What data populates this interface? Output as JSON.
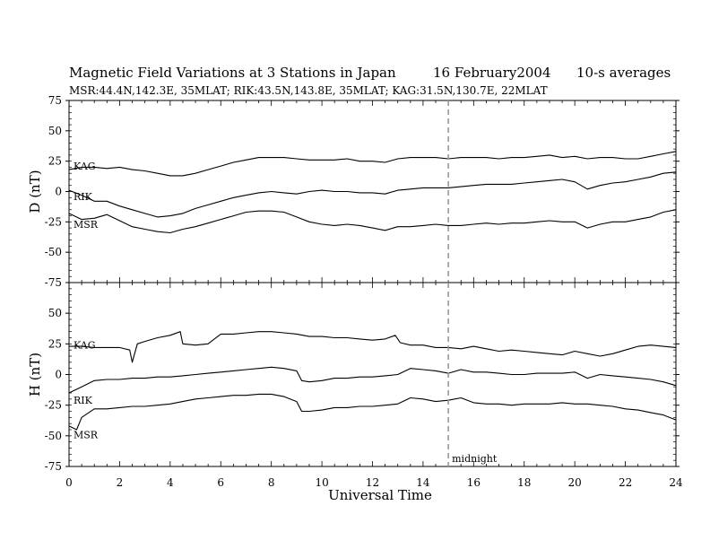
{
  "title": "Magnetic Field Variations at 3 Stations in Japan",
  "date": "16 February2004",
  "averaging": "10-s averages",
  "subtitle": "MSR:44.4N,142.3E, 35MLAT;   RIK:43.5N,143.8E, 35MLAT;   KAG:31.5N,130.7E, 22MLAT",
  "chart_data": [
    {
      "type": "line",
      "ylabel": "D (nT)",
      "ylim": [
        -75,
        75
      ],
      "yticks": [
        75,
        50,
        25,
        0,
        -25,
        -50,
        -75
      ],
      "xlim": [
        0,
        24
      ],
      "series": [
        {
          "name": "KAG",
          "x": [
            0,
            0.5,
            1,
            1.5,
            2,
            2.5,
            3,
            3.5,
            4,
            4.5,
            5,
            5.5,
            6,
            6.5,
            7,
            7.5,
            8,
            8.5,
            9,
            9.5,
            10,
            10.5,
            11,
            11.5,
            12,
            12.5,
            13,
            13.5,
            14,
            14.5,
            15,
            15.5,
            16,
            16.5,
            17,
            17.5,
            18,
            18.5,
            19,
            19.5,
            20,
            20.5,
            21,
            21.5,
            22,
            22.5,
            23,
            23.5,
            24
          ],
          "y": [
            18,
            20,
            20,
            19,
            20,
            18,
            17,
            15,
            13,
            13,
            15,
            18,
            21,
            24,
            26,
            28,
            28,
            28,
            27,
            26,
            26,
            26,
            27,
            25,
            25,
            24,
            27,
            28,
            28,
            28,
            27,
            28,
            28,
            28,
            27,
            28,
            28,
            29,
            30,
            28,
            29,
            27,
            28,
            28,
            27,
            27,
            29,
            31,
            33
          ]
        },
        {
          "name": "RIK",
          "x": [
            0,
            0.5,
            1,
            1.5,
            2,
            2.5,
            3,
            3.5,
            4,
            4.5,
            5,
            5.5,
            6,
            6.5,
            7,
            7.5,
            8,
            8.5,
            9,
            9.5,
            10,
            10.5,
            11,
            11.5,
            12,
            12.5,
            13,
            13.5,
            14,
            14.5,
            15,
            15.5,
            16,
            16.5,
            17,
            17.5,
            18,
            18.5,
            19,
            19.5,
            20,
            20.5,
            21,
            21.5,
            22,
            22.5,
            23,
            23.5,
            24
          ],
          "y": [
            1,
            -3,
            -8,
            -8,
            -12,
            -15,
            -18,
            -21,
            -20,
            -18,
            -14,
            -11,
            -8,
            -5,
            -3,
            -1,
            0,
            -1,
            -2,
            0,
            1,
            0,
            0,
            -1,
            -1,
            -2,
            1,
            2,
            3,
            3,
            3,
            4,
            5,
            6,
            6,
            6,
            7,
            8,
            9,
            10,
            8,
            2,
            5,
            7,
            8,
            10,
            12,
            15,
            16
          ]
        },
        {
          "name": "MSR",
          "x": [
            0,
            0.5,
            1,
            1.5,
            2,
            2.5,
            3,
            3.5,
            4,
            4.5,
            5,
            5.5,
            6,
            6.5,
            7,
            7.5,
            8,
            8.5,
            9,
            9.5,
            10,
            10.5,
            11,
            11.5,
            12,
            12.5,
            13,
            13.5,
            14,
            14.5,
            15,
            15.5,
            16,
            16.5,
            17,
            17.5,
            18,
            18.5,
            19,
            19.5,
            20,
            20.5,
            21,
            21.5,
            22,
            22.5,
            23,
            23.5,
            24
          ],
          "y": [
            -18,
            -23,
            -22,
            -19,
            -24,
            -29,
            -31,
            -33,
            -34,
            -31,
            -29,
            -26,
            -23,
            -20,
            -17,
            -16,
            -16,
            -17,
            -21,
            -25,
            -27,
            -28,
            -27,
            -28,
            -30,
            -32,
            -29,
            -29,
            -28,
            -27,
            -28,
            -28,
            -27,
            -26,
            -27,
            -26,
            -26,
            -25,
            -24,
            -25,
            -25,
            -30,
            -27,
            -25,
            -25,
            -23,
            -21,
            -17,
            -15
          ]
        }
      ]
    },
    {
      "type": "line",
      "xlabel": "Universal Time",
      "ylabel": "H (nT)",
      "ylim": [
        -75,
        75
      ],
      "yticks": [
        75,
        50,
        25,
        0,
        -25,
        -50,
        -75
      ],
      "xlim": [
        0,
        24
      ],
      "xticks": [
        0,
        2,
        4,
        6,
        8,
        10,
        12,
        14,
        16,
        18,
        20,
        22,
        24
      ],
      "series": [
        {
          "name": "KAG",
          "x": [
            0,
            0.5,
            1,
            1.5,
            2,
            2.4,
            2.5,
            2.7,
            3,
            3.5,
            4,
            4.4,
            4.5,
            5,
            5.5,
            6,
            6.5,
            7,
            7.5,
            8,
            8.5,
            9,
            9.5,
            10,
            10.5,
            11,
            11.5,
            12,
            12.5,
            12.9,
            13.1,
            13.5,
            14,
            14.5,
            15,
            15.5,
            16,
            16.5,
            17,
            17.5,
            18,
            18.5,
            19,
            19.5,
            20,
            20.5,
            21,
            21.5,
            22,
            22.5,
            23,
            23.5,
            24
          ],
          "y": [
            23,
            23,
            22,
            22,
            22,
            20,
            10,
            25,
            27,
            30,
            32,
            35,
            25,
            24,
            25,
            33,
            33,
            34,
            35,
            35,
            34,
            33,
            31,
            31,
            30,
            30,
            29,
            28,
            29,
            32,
            26,
            24,
            24,
            22,
            22,
            21,
            23,
            21,
            19,
            20,
            19,
            18,
            17,
            16,
            19,
            17,
            15,
            17,
            20,
            23,
            24,
            23,
            22
          ]
        },
        {
          "name": "RIK",
          "x": [
            0,
            0.5,
            1,
            1.5,
            2,
            2.5,
            3,
            3.5,
            4,
            4.5,
            5,
            5.5,
            6,
            6.5,
            7,
            7.5,
            8,
            8.5,
            9,
            9.2,
            9.5,
            10,
            10.5,
            11,
            11.5,
            12,
            12.5,
            13,
            13.5,
            14,
            14.5,
            15,
            15.5,
            16,
            16.5,
            17,
            17.5,
            18,
            18.5,
            19,
            19.5,
            20,
            20.5,
            21,
            21.5,
            22,
            22.5,
            23,
            23.5,
            24
          ],
          "y": [
            -15,
            -10,
            -5,
            -4,
            -4,
            -3,
            -3,
            -2,
            -2,
            -1,
            0,
            1,
            2,
            3,
            4,
            5,
            6,
            5,
            3,
            -5,
            -6,
            -5,
            -3,
            -3,
            -2,
            -2,
            -1,
            0,
            5,
            4,
            3,
            1,
            4,
            2,
            2,
            1,
            0,
            0,
            1,
            1,
            1,
            2,
            -3,
            0,
            -1,
            -2,
            -3,
            -4,
            -6,
            -9
          ]
        },
        {
          "name": "MSR",
          "x": [
            0,
            0.3,
            0.5,
            1,
            1.5,
            2,
            2.5,
            3,
            3.5,
            4,
            4.5,
            5,
            5.5,
            6,
            6.5,
            7,
            7.5,
            8,
            8.5,
            9,
            9.2,
            9.5,
            10,
            10.5,
            11,
            11.5,
            12,
            12.5,
            13,
            13.5,
            14,
            14.5,
            15,
            15.5,
            16,
            16.5,
            17,
            17.5,
            18,
            18.5,
            19,
            19.5,
            20,
            20.5,
            21,
            21.5,
            22,
            22.5,
            23,
            23.5,
            24
          ],
          "y": [
            -42,
            -45,
            -35,
            -28,
            -28,
            -27,
            -26,
            -26,
            -25,
            -24,
            -22,
            -20,
            -19,
            -18,
            -17,
            -17,
            -16,
            -16,
            -18,
            -22,
            -30,
            -30,
            -29,
            -27,
            -27,
            -26,
            -26,
            -25,
            -24,
            -19,
            -20,
            -22,
            -21,
            -19,
            -23,
            -24,
            -24,
            -25,
            -24,
            -24,
            -24,
            -23,
            -24,
            -24,
            -25,
            -26,
            -28,
            -29,
            -31,
            -33,
            -37
          ]
        }
      ]
    }
  ],
  "midnight_ut": 15,
  "midnight_label": "midnight"
}
